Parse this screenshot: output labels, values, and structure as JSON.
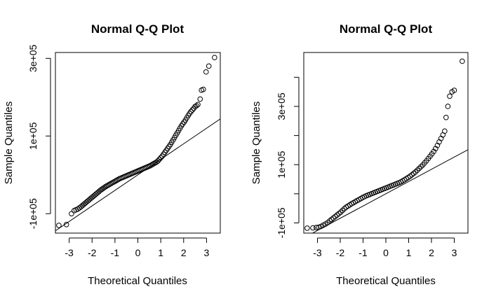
{
  "chart_data": [
    {
      "type": "scatter",
      "title": "Normal Q-Q Plot",
      "xlabel": "Theoretical Quantiles",
      "ylabel": "Sample Quantiles",
      "xlim": [
        -3.6,
        3.6
      ],
      "ylim": [
        -150000,
        315000
      ],
      "xticks": [
        -3,
        -2,
        -1,
        0,
        1,
        2,
        3
      ],
      "xtick_labels": [
        "-3",
        "-2",
        "-1",
        "0",
        "1",
        "2",
        "3"
      ],
      "yticks": [
        -100000,
        100000,
        300000
      ],
      "ytick_labels": [
        "-1e+05",
        "1e+05",
        "3e+05"
      ],
      "grid": false,
      "reference_line": {
        "intercept": 0,
        "slope": 40000
      },
      "points": {
        "x": [
          -3.45,
          -3.12,
          -2.9,
          -2.78,
          -2.7,
          -2.62,
          -2.55,
          -2.48,
          -2.42,
          -2.36,
          -2.3,
          -2.24,
          -2.18,
          -2.12,
          -2.06,
          -2.0,
          -1.94,
          -1.88,
          -1.82,
          -1.76,
          -1.7,
          -1.64,
          -1.58,
          -1.52,
          -1.46,
          -1.4,
          -1.34,
          -1.28,
          -1.22,
          -1.16,
          -1.1,
          -1.04,
          -0.98,
          -0.92,
          -0.86,
          -0.8,
          -0.74,
          -0.68,
          -0.62,
          -0.56,
          -0.5,
          -0.44,
          -0.38,
          -0.32,
          -0.26,
          -0.2,
          -0.14,
          -0.08,
          -0.02,
          0.04,
          0.1,
          0.16,
          0.22,
          0.28,
          0.34,
          0.4,
          0.46,
          0.52,
          0.58,
          0.64,
          0.7,
          0.76,
          0.82,
          0.88,
          0.94,
          1.0,
          1.06,
          1.12,
          1.18,
          1.24,
          1.3,
          1.36,
          1.42,
          1.48,
          1.54,
          1.6,
          1.66,
          1.72,
          1.78,
          1.84,
          1.9,
          1.96,
          2.02,
          2.08,
          2.14,
          2.2,
          2.26,
          2.32,
          2.38,
          2.44,
          2.5,
          2.56,
          2.62,
          2.72,
          2.78,
          2.86,
          2.98,
          3.1,
          3.35
        ],
        "y": [
          -130000,
          -128000,
          -100000,
          -92000,
          -90000,
          -88000,
          -85000,
          -82000,
          -79000,
          -76000,
          -73000,
          -70000,
          -67000,
          -64000,
          -61000,
          -58000,
          -55000,
          -52000,
          -49000,
          -46000,
          -43000,
          -40000,
          -37500,
          -35000,
          -32500,
          -30000,
          -28000,
          -26000,
          -24000,
          -22000,
          -20000,
          -18000,
          -16000,
          -14000,
          -12000,
          -10000,
          -8500,
          -7000,
          -5500,
          -4000,
          -2500,
          -1000,
          500,
          2000,
          3500,
          5000,
          6500,
          8000,
          9500,
          11000,
          12500,
          14000,
          15500,
          17000,
          18500,
          20000,
          21500,
          23000,
          25000,
          27000,
          29000,
          31000,
          33000,
          36000,
          40000,
          44000,
          48000,
          53000,
          58000,
          63000,
          68000,
          73000,
          78000,
          84000,
          90000,
          96000,
          102000,
          108000,
          114000,
          120000,
          126000,
          131000,
          136000,
          141000,
          147000,
          153000,
          158000,
          163000,
          167000,
          171000,
          176000,
          178000,
          181000,
          195000,
          218000,
          220000,
          265000,
          280000,
          302000
        ]
      }
    },
    {
      "type": "scatter",
      "title": "Normal Q-Q Plot",
      "xlabel": "Theoretical Quantiles",
      "ylabel": "Sample Quantiles",
      "xlim": [
        -3.6,
        3.6
      ],
      "ylim": [
        -135000,
        485000
      ],
      "xticks": [
        -3,
        -2,
        -1,
        0,
        1,
        2,
        3
      ],
      "xtick_labels": [
        "-3",
        "-2",
        "-1",
        "0",
        "1",
        "2",
        "3"
      ],
      "yticks": [
        -100000,
        0,
        100000,
        200000,
        300000,
        400000
      ],
      "ytick_labels": [
        "-1e+05",
        "",
        "1e+05",
        "",
        "3e+05",
        ""
      ],
      "grid": false,
      "reference_line": {
        "intercept": 0,
        "slope": 42000
      },
      "points": {
        "x": [
          -3.45,
          -3.2,
          -3.05,
          -2.95,
          -2.85,
          -2.75,
          -2.65,
          -2.55,
          -2.46,
          -2.38,
          -2.3,
          -2.22,
          -2.14,
          -2.06,
          -1.98,
          -1.9,
          -1.82,
          -1.74,
          -1.66,
          -1.58,
          -1.5,
          -1.42,
          -1.34,
          -1.26,
          -1.18,
          -1.1,
          -1.02,
          -0.94,
          -0.86,
          -0.78,
          -0.7,
          -0.62,
          -0.54,
          -0.46,
          -0.38,
          -0.3,
          -0.22,
          -0.14,
          -0.06,
          0.02,
          0.1,
          0.18,
          0.26,
          0.34,
          0.42,
          0.5,
          0.58,
          0.66,
          0.74,
          0.82,
          0.9,
          0.98,
          1.06,
          1.14,
          1.22,
          1.3,
          1.38,
          1.46,
          1.54,
          1.62,
          1.7,
          1.78,
          1.86,
          1.94,
          2.02,
          2.1,
          2.18,
          2.26,
          2.34,
          2.42,
          2.5,
          2.58,
          2.64,
          2.72,
          2.8,
          2.9,
          3.0,
          3.35
        ],
        "y": [
          -118000,
          -117000,
          -116000,
          -115000,
          -112000,
          -108000,
          -104000,
          -99000,
          -93000,
          -88000,
          -83000,
          -78000,
          -73000,
          -68000,
          -63000,
          -57000,
          -51000,
          -46000,
          -42000,
          -38000,
          -34000,
          -30500,
          -27000,
          -23500,
          -20000,
          -16500,
          -13000,
          -10000,
          -7000,
          -4500,
          -2000,
          500,
          3000,
          5500,
          8000,
          10500,
          13000,
          15500,
          18000,
          20500,
          23000,
          25500,
          28000,
          30500,
          33000,
          35500,
          38000,
          41000,
          44500,
          48000,
          52000,
          56000,
          60000,
          65000,
          70000,
          75000,
          81000,
          87000,
          93000,
          99000,
          106000,
          113000,
          121000,
          129000,
          137000,
          145000,
          155000,
          166000,
          178000,
          190000,
          202000,
          215000,
          262000,
          300000,
          335000,
          350000,
          355000,
          455000
        ]
      }
    }
  ]
}
